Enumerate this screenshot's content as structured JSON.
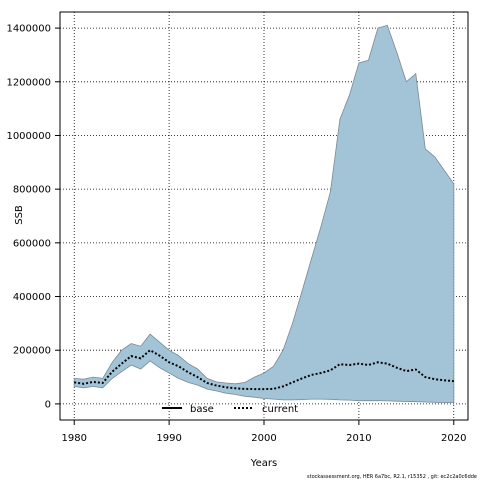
{
  "chart_data": {
    "type": "area",
    "xlabel": "Years",
    "ylabel": "SSB",
    "xlim": [
      1978.5,
      2021.5
    ],
    "ylim": [
      -60000,
      1460000
    ],
    "xticks": [
      1980,
      1990,
      2000,
      2010,
      2020
    ],
    "yticks": [
      0,
      200000,
      400000,
      600000,
      800000,
      1000000,
      1200000,
      1400000
    ],
    "grid": true,
    "legend": {
      "placement": "bottom-center",
      "entries": [
        {
          "name": "base",
          "style": "solid",
          "color": "#000000"
        },
        {
          "name": "current",
          "style": "dotted",
          "color": "#000000"
        }
      ]
    },
    "band_color": "#a3c4d6",
    "band_edge_color": "#7a8a96",
    "x": [
      1980,
      1981,
      1982,
      1983,
      1984,
      1985,
      1986,
      1987,
      1988,
      1989,
      1990,
      1991,
      1992,
      1993,
      1994,
      1995,
      1996,
      1997,
      1998,
      1999,
      2000,
      2001,
      2002,
      2003,
      2004,
      2005,
      2006,
      2007,
      2008,
      2009,
      2010,
      2011,
      2012,
      2013,
      2014,
      2015,
      2016,
      2017,
      2018,
      2019,
      2020
    ],
    "upper": [
      95000,
      92000,
      100000,
      95000,
      155000,
      200000,
      225000,
      215000,
      260000,
      230000,
      200000,
      180000,
      150000,
      130000,
      95000,
      82000,
      78000,
      75000,
      80000,
      100000,
      115000,
      140000,
      200000,
      300000,
      420000,
      540000,
      660000,
      790000,
      1060000,
      1150000,
      1270000,
      1280000,
      1400000,
      1410000,
      1310000,
      1200000,
      1230000,
      950000,
      920000,
      870000,
      820000
    ],
    "lower": [
      65000,
      60000,
      65000,
      60000,
      95000,
      120000,
      145000,
      130000,
      160000,
      135000,
      115000,
      95000,
      80000,
      70000,
      55000,
      48000,
      40000,
      35000,
      28000,
      25000,
      20000,
      18000,
      15000,
      15000,
      16000,
      18000,
      18000,
      17000,
      15000,
      14000,
      12000,
      12000,
      12000,
      11000,
      10000,
      9000,
      8000,
      7000,
      6000,
      5000,
      5000
    ],
    "series": [
      {
        "name": "current",
        "values": [
          80000,
          75000,
          82000,
          78000,
          120000,
          150000,
          178000,
          170000,
          200000,
          180000,
          155000,
          140000,
          118000,
          100000,
          78000,
          68000,
          62000,
          58000,
          56000,
          55000,
          55000,
          56000,
          65000,
          80000,
          95000,
          108000,
          115000,
          125000,
          148000,
          145000,
          150000,
          145000,
          155000,
          150000,
          135000,
          122000,
          128000,
          100000,
          92000,
          88000,
          85000
        ]
      }
    ],
    "footer": "stockassessment.org, HER 6a7bc, R2.1, r15352 , git: ec2c2a0c6dde"
  }
}
